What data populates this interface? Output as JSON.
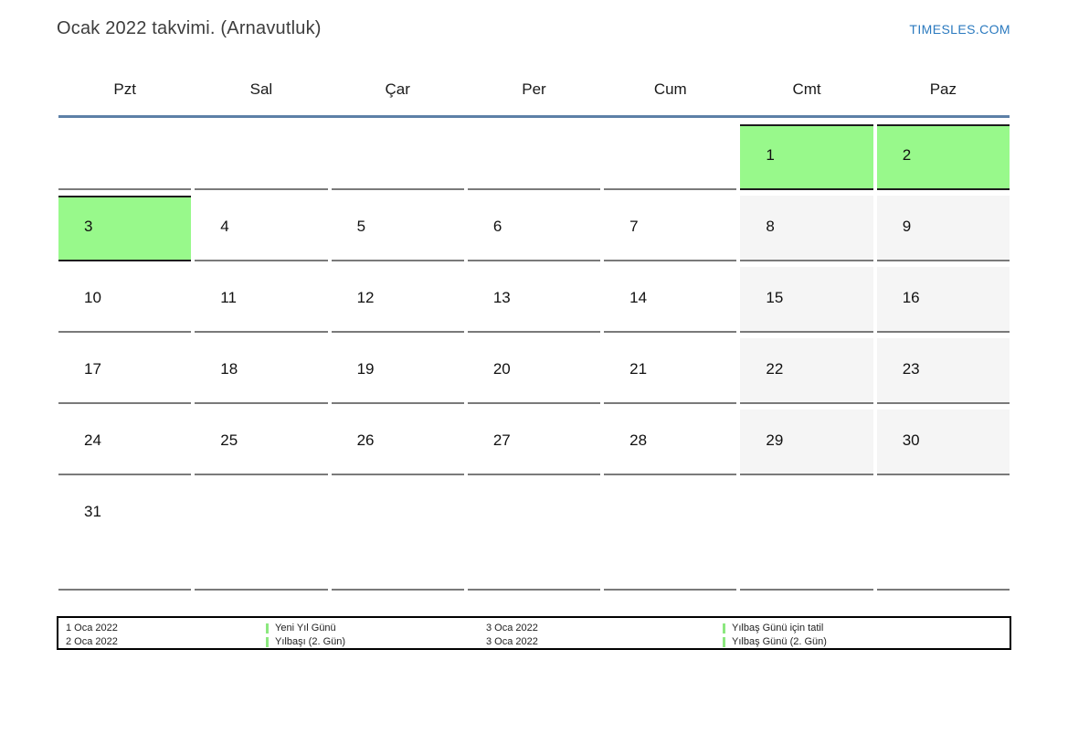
{
  "page": {
    "title": "Ocak 2022 takvimi. (Arnavutluk)",
    "site_link": "TIMESLES.COM"
  },
  "calendar": {
    "weekday_headers": [
      "Pzt",
      "Sal",
      "Çar",
      "Per",
      "Cum",
      "Cmt",
      "Paz"
    ],
    "weeks": [
      [
        "",
        "",
        "",
        "",
        "",
        "1",
        "2"
      ],
      [
        "3",
        "4",
        "5",
        "6",
        "7",
        "8",
        "9"
      ],
      [
        "10",
        "11",
        "12",
        "13",
        "14",
        "15",
        "16"
      ],
      [
        "17",
        "18",
        "19",
        "20",
        "21",
        "22",
        "23"
      ],
      [
        "24",
        "25",
        "26",
        "27",
        "28",
        "29",
        "30"
      ],
      [
        "31",
        "",
        "",
        "",
        "",
        "",
        ""
      ]
    ],
    "highlighted_days": [
      "1",
      "2",
      "3"
    ],
    "weekend_column_indices": [
      5,
      6
    ]
  },
  "legend": {
    "rows": [
      {
        "date1": "1 Oca 2022",
        "name1": "Yeni Yıl Günü",
        "date2": "3 Oca 2022",
        "name2": "Yılbaş Günü için tatil"
      },
      {
        "date1": "2 Oca 2022",
        "name1": "Yılbaşı (2. Gün)",
        "date2": "3 Oca 2022",
        "name2": "Yılbaş Günü (2. Gün)"
      }
    ]
  },
  "colors": {
    "highlight_green": "#98f98b",
    "legend_bar_green": "#8ce87f",
    "weekend_gray": "#f5f5f5",
    "header_line_blue": "#5d80a7",
    "link_blue": "#2b7abf"
  }
}
